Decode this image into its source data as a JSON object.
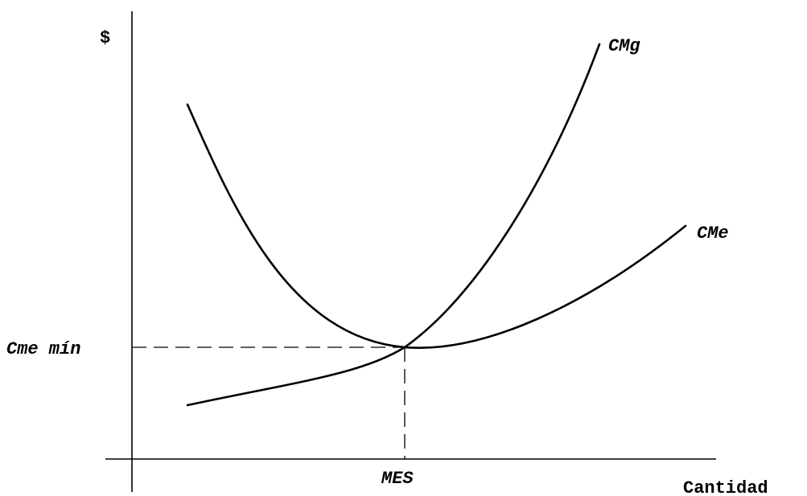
{
  "diagram": {
    "y_axis_label": "$",
    "x_axis_label": "Cantidad",
    "min_cost_label": "Cme mín",
    "mes_label": "MES",
    "marginal_cost_label": "CMg",
    "average_cost_label": "CMe"
  },
  "colors": {
    "ink": "#000000",
    "background": "#ffffff"
  }
}
